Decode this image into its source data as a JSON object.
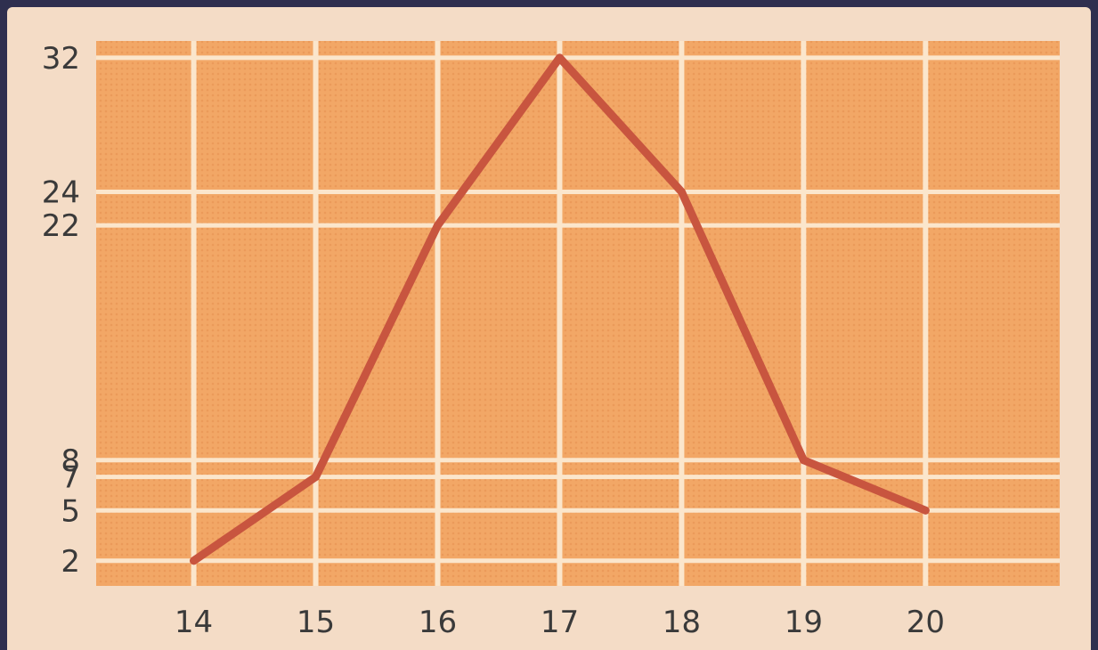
{
  "chart_data": {
    "type": "line",
    "title": "",
    "xlabel": "",
    "ylabel": "",
    "x": [
      14,
      15,
      16,
      17,
      18,
      19,
      20
    ],
    "series": [
      {
        "values": [
          2,
          7,
          22,
          32,
          24,
          8,
          5
        ]
      }
    ],
    "x_ticks": [
      "14",
      "15",
      "16",
      "17",
      "18",
      "19",
      "20"
    ],
    "y_ticks": [
      "2",
      "5",
      "7",
      "8",
      "22",
      "24",
      "32"
    ],
    "xlim": [
      13.2,
      21.1
    ],
    "ylim": [
      0.5,
      33
    ],
    "grid": true,
    "legend": "none",
    "colors": {
      "background": "#f4dcc6",
      "plot_fill": "#f2a766",
      "grid": "#fbe6cc",
      "line": "#c8553f",
      "frame": "#2f2f4f",
      "text": "#3a3a3a"
    }
  }
}
